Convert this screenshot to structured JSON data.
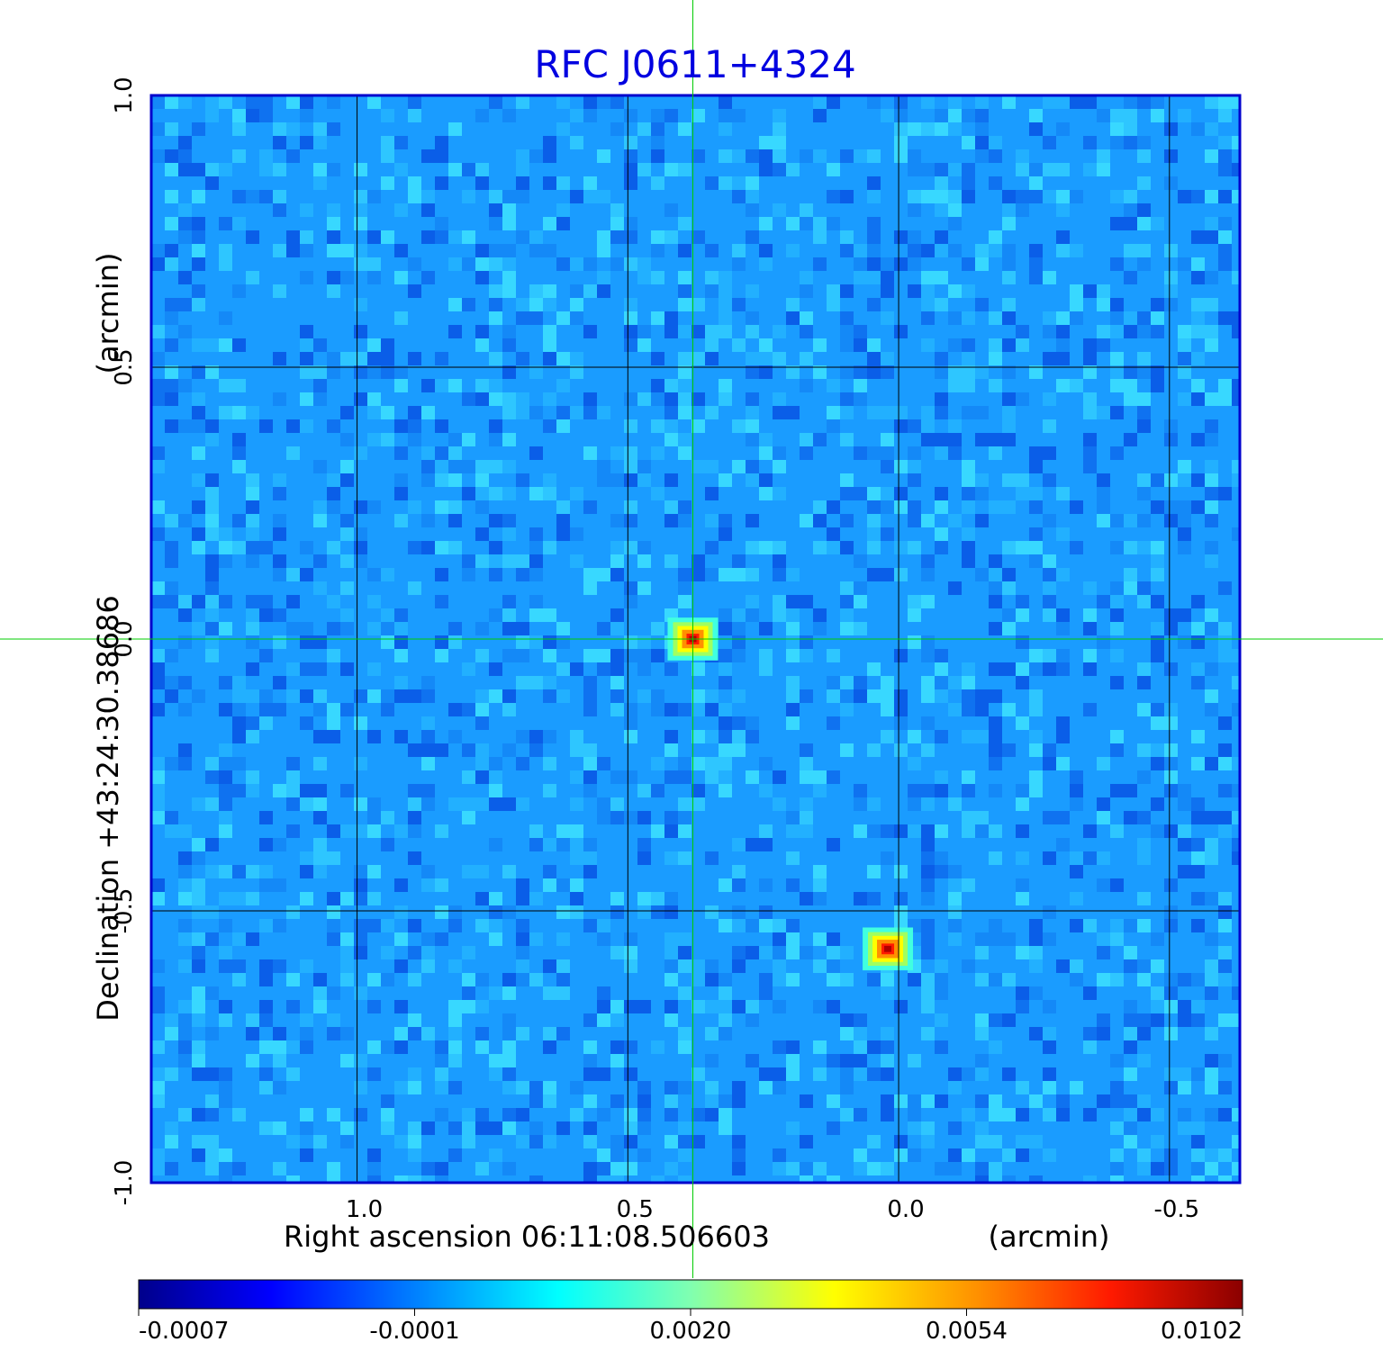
{
  "chart_data": {
    "type": "heatmap",
    "title": "RFC J0611+4324",
    "xlabel": "Right ascension  06:11:08.506603",
    "xunit": "(arcmin)",
    "ylabel": "Declination  +43:24:30.38686",
    "yunit": "(arcmin)",
    "x_ticks": [
      "1.0",
      "0.5",
      "0.0",
      "-0.5"
    ],
    "x_tick_values": [
      1.0,
      0.5,
      0.0,
      -0.5
    ],
    "y_ticks": [
      "1.0",
      "0.5",
      "0.0",
      "-0.5",
      "-1.0"
    ],
    "y_tick_values": [
      1.0,
      0.5,
      0.0,
      -0.5,
      -1.0
    ],
    "xlim": [
      1.38,
      -0.63
    ],
    "ylim": [
      -1.0,
      1.0
    ],
    "grid": true,
    "crosshair": [
      0.38,
      0.0
    ],
    "sources": [
      {
        "x": 0.38,
        "y": 0.0,
        "peak": 0.0102
      },
      {
        "x": 0.02,
        "y": -0.57,
        "peak": 0.0102
      }
    ],
    "colorbar": {
      "ticks": [
        "-0.0007",
        "-0.0001",
        "0.0020",
        "0.0054",
        "0.0102"
      ],
      "colors": [
        "#00008b",
        "#0000ff",
        "#00c8ff",
        "#00ffff",
        "#80ffa0",
        "#ffff00",
        "#ff8000",
        "#ff0000",
        "#8b0000"
      ]
    },
    "colors": {
      "title": "#0000e0",
      "frame": "#0000cc",
      "grid": "#000000",
      "crosshair": "#00cc00"
    }
  }
}
